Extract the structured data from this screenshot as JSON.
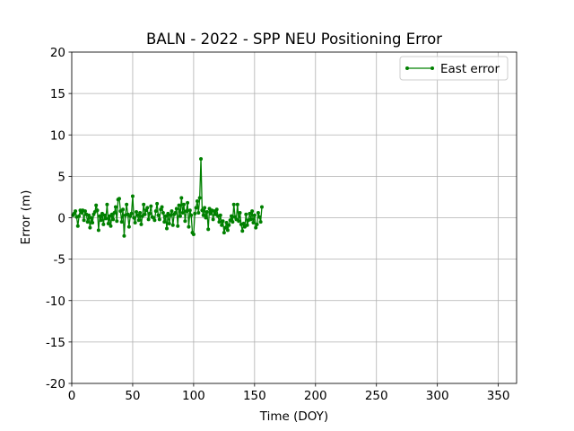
{
  "chart_data": {
    "type": "line",
    "title": "BALN - 2022 - SPP NEU Positioning Error",
    "x_label": "Time (DOY)",
    "y_label": "Error (m)",
    "x": [
      1,
      2,
      3,
      4,
      5,
      6,
      7,
      8,
      9,
      10,
      11,
      12,
      13,
      14,
      15,
      16,
      17,
      18,
      19,
      20,
      21,
      22,
      23,
      24,
      25,
      26,
      27,
      28,
      29,
      30,
      31,
      32,
      33,
      34,
      35,
      36,
      37,
      38,
      39,
      40,
      41,
      42,
      43,
      44,
      45,
      46,
      47,
      48,
      49,
      50,
      51,
      52,
      53,
      54,
      55,
      56,
      57,
      58,
      59,
      60,
      61,
      62,
      63,
      64,
      65,
      66,
      67,
      68,
      69,
      70,
      71,
      72,
      73,
      74,
      75,
      76,
      77,
      78,
      79,
      80,
      81,
      82,
      83,
      84,
      85,
      86,
      87,
      88,
      89,
      90,
      91,
      92,
      93,
      94,
      95,
      96,
      97,
      98,
      99,
      100,
      101,
      102,
      103,
      104,
      105,
      106,
      107,
      108,
      109,
      110,
      111,
      112,
      113,
      114,
      115,
      116,
      117,
      118,
      119,
      120,
      121,
      122,
      123,
      124,
      125,
      126,
      127,
      128,
      129,
      130,
      131,
      132,
      133,
      134,
      135,
      136,
      137,
      138,
      139,
      140,
      141,
      142,
      143,
      144,
      145,
      146,
      147,
      148,
      149,
      150,
      151,
      152,
      153,
      154,
      155,
      156
    ],
    "series": [
      {
        "name": "East error",
        "color": "#008000",
        "values": [
          0.3,
          0.5,
          0.8,
          0.1,
          -1.0,
          0.2,
          0.9,
          0.6,
          0.9,
          -0.3,
          0.8,
          0.4,
          -0.5,
          0.3,
          -1.2,
          0.0,
          -0.6,
          0.4,
          0.7,
          1.5,
          0.9,
          -1.5,
          0.2,
          -0.3,
          0.5,
          -0.8,
          0.3,
          -0.1,
          1.6,
          -0.7,
          0.2,
          -1.0,
          0.4,
          -0.2,
          0.6,
          1.3,
          -0.4,
          2.2,
          2.3,
          0.8,
          -0.5,
          1.0,
          -2.2,
          0.3,
          1.6,
          0.4,
          -1.1,
          0.2,
          0.5,
          2.6,
          0.0,
          -0.6,
          0.7,
          0.3,
          -0.3,
          0.6,
          -0.8,
          0.2,
          1.6,
          0.4,
          0.9,
          1.2,
          -0.2,
          0.5,
          1.4,
          0.1,
          0.0,
          -0.3,
          0.8,
          1.7,
          0.3,
          -0.2,
          1.0,
          1.3,
          0.6,
          -0.5,
          0.2,
          -1.3,
          0.5,
          -0.7,
          0.3,
          0.8,
          -0.9,
          0.4,
          0.6,
          1.1,
          -1.0,
          1.5,
          0.2,
          2.4,
          0.6,
          1.6,
          -0.4,
          0.8,
          1.8,
          -1.1,
          0.9,
          0.3,
          -1.8,
          -2.0,
          0.5,
          1.2,
          2.0,
          0.6,
          2.4,
          7.1,
          0.9,
          0.3,
          1.2,
          0.0,
          0.7,
          -1.4,
          1.1,
          0.5,
          0.9,
          -0.2,
          0.8,
          0.4,
          1.0,
          0.2,
          -0.5,
          0.3,
          -0.9,
          -0.4,
          -1.8,
          -1.2,
          -0.6,
          -1.5,
          -0.9,
          -0.3,
          0.2,
          -0.5,
          1.6,
          0.1,
          -0.2,
          1.6,
          -0.4,
          0.6,
          -0.8,
          -1.6,
          -0.7,
          -1.1,
          0.4,
          -0.9,
          -0.3,
          0.5,
          -0.2,
          0.8,
          -0.6,
          0.3,
          -1.2,
          -0.8,
          0.6,
          0.1,
          -0.5,
          1.3
        ]
      }
    ],
    "xlim": [
      0,
      365
    ],
    "ylim": [
      -20,
      20
    ],
    "xticks": [
      0,
      50,
      100,
      150,
      200,
      250,
      300,
      350
    ],
    "yticks": [
      -20,
      -15,
      -10,
      -5,
      0,
      5,
      10,
      15,
      20
    ],
    "grid": true,
    "legend": "upper right"
  }
}
